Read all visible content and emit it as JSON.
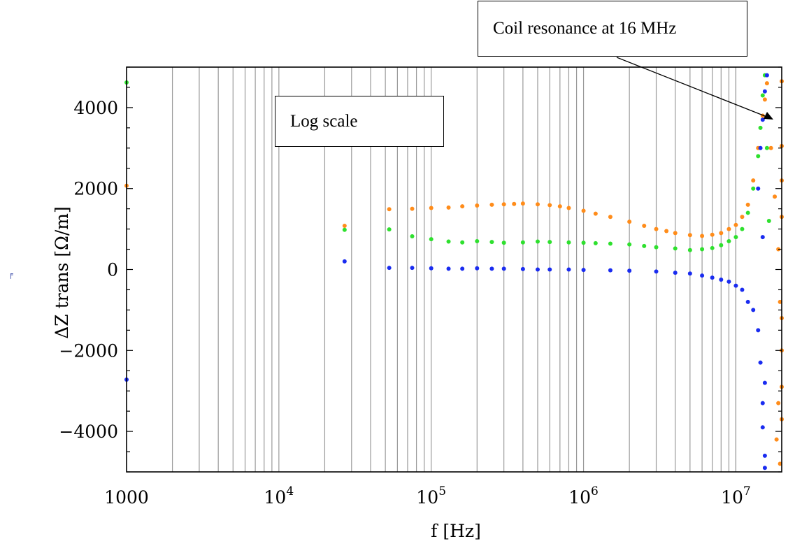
{
  "chart_data": {
    "type": "scatter",
    "xscale": "log",
    "xlim": [
      1000,
      20000000
    ],
    "ylim": [
      -5000,
      5000
    ],
    "xlabel": "f [Hz]",
    "ylabel": "ΔZ trans [Ω/m]",
    "grid": {
      "x": true,
      "y": false
    },
    "x_ticks": [
      {
        "value": 1000,
        "label": "1000"
      },
      {
        "value": 10000,
        "label": "10",
        "sup": "4"
      },
      {
        "value": 100000,
        "label": "10",
        "sup": "5"
      },
      {
        "value": 1000000,
        "label": "10",
        "sup": "6"
      },
      {
        "value": 10000000,
        "label": "10",
        "sup": "7"
      }
    ],
    "y_ticks": [
      {
        "value": 4000,
        "label": "4000"
      },
      {
        "value": 2000,
        "label": "2000"
      },
      {
        "value": 0,
        "label": "0"
      },
      {
        "value": -2000,
        "label": "−2000"
      },
      {
        "value": -4000,
        "label": "−4000"
      }
    ],
    "annotations": [
      {
        "text": "Coil resonance at 16 MHz",
        "arrow_to": {
          "x": 16000000,
          "y": 4000
        }
      },
      {
        "text": "Log scale"
      }
    ],
    "series": [
      {
        "color": "#ff8c1a",
        "points": [
          [
            1000,
            2070
          ],
          [
            27000,
            1080
          ],
          [
            53000,
            1490
          ],
          [
            75000,
            1500
          ],
          [
            100000,
            1520
          ],
          [
            130000,
            1530
          ],
          [
            160000,
            1560
          ],
          [
            200000,
            1580
          ],
          [
            250000,
            1600
          ],
          [
            300000,
            1610
          ],
          [
            350000,
            1620
          ],
          [
            400000,
            1630
          ],
          [
            500000,
            1610
          ],
          [
            600000,
            1590
          ],
          [
            700000,
            1560
          ],
          [
            800000,
            1520
          ],
          [
            1000000,
            1450
          ],
          [
            1200000,
            1380
          ],
          [
            1500000,
            1300
          ],
          [
            2000000,
            1180
          ],
          [
            2500000,
            1080
          ],
          [
            3000000,
            1000
          ],
          [
            3500000,
            950
          ],
          [
            4000000,
            900
          ],
          [
            5000000,
            850
          ],
          [
            6000000,
            830
          ],
          [
            7000000,
            860
          ],
          [
            8000000,
            900
          ],
          [
            9000000,
            1000
          ],
          [
            10000000,
            1100
          ],
          [
            11000000,
            1300
          ],
          [
            12000000,
            1600
          ],
          [
            13000000,
            2200
          ],
          [
            14000000,
            3000
          ],
          [
            15000000,
            3800
          ],
          [
            15500000,
            4200
          ],
          [
            16000000,
            4600
          ],
          [
            17000000,
            3000
          ],
          [
            18000000,
            1800
          ],
          [
            19000000,
            500
          ],
          [
            19500000,
            -800
          ],
          [
            20000000,
            -2000
          ],
          [
            19000000,
            -3300
          ],
          [
            18500000,
            -4200
          ],
          [
            19500000,
            -4800
          ],
          [
            20000000,
            4650
          ],
          [
            20000000,
            3050
          ],
          [
            20000000,
            2200
          ],
          [
            20000000,
            1300
          ],
          [
            20000000,
            -1200
          ],
          [
            20000000,
            -2900
          ],
          [
            20000000,
            -3700
          ]
        ]
      },
      {
        "color": "#2ee02e",
        "points": [
          [
            1000,
            4620
          ],
          [
            27000,
            980
          ],
          [
            53000,
            990
          ],
          [
            75000,
            820
          ],
          [
            100000,
            750
          ],
          [
            130000,
            690
          ],
          [
            160000,
            670
          ],
          [
            200000,
            700
          ],
          [
            250000,
            680
          ],
          [
            300000,
            660
          ],
          [
            400000,
            670
          ],
          [
            500000,
            690
          ],
          [
            600000,
            680
          ],
          [
            800000,
            670
          ],
          [
            1000000,
            660
          ],
          [
            1200000,
            650
          ],
          [
            1500000,
            640
          ],
          [
            2000000,
            620
          ],
          [
            2500000,
            580
          ],
          [
            3000000,
            550
          ],
          [
            4000000,
            520
          ],
          [
            5000000,
            480
          ],
          [
            6000000,
            500
          ],
          [
            7000000,
            530
          ],
          [
            8000000,
            600
          ],
          [
            9000000,
            700
          ],
          [
            10000000,
            800
          ],
          [
            11000000,
            1000
          ],
          [
            12000000,
            1400
          ],
          [
            13000000,
            2000
          ],
          [
            14000000,
            2800
          ],
          [
            14500000,
            3500
          ],
          [
            15000000,
            4300
          ],
          [
            15500000,
            4800
          ],
          [
            16000000,
            3000
          ],
          [
            16500000,
            1200
          ]
        ]
      },
      {
        "color": "#1a2cf0",
        "points": [
          [
            1000,
            -2720
          ],
          [
            27000,
            200
          ],
          [
            53000,
            40
          ],
          [
            75000,
            40
          ],
          [
            100000,
            30
          ],
          [
            130000,
            20
          ],
          [
            160000,
            20
          ],
          [
            200000,
            30
          ],
          [
            250000,
            20
          ],
          [
            300000,
            20
          ],
          [
            400000,
            10
          ],
          [
            500000,
            0
          ],
          [
            600000,
            0
          ],
          [
            800000,
            0
          ],
          [
            1000000,
            -10
          ],
          [
            1500000,
            -20
          ],
          [
            2000000,
            -30
          ],
          [
            3000000,
            -50
          ],
          [
            4000000,
            -80
          ],
          [
            5000000,
            -100
          ],
          [
            6000000,
            -150
          ],
          [
            7000000,
            -200
          ],
          [
            8000000,
            -250
          ],
          [
            9000000,
            -300
          ],
          [
            10000000,
            -400
          ],
          [
            11000000,
            -500
          ],
          [
            12000000,
            -800
          ],
          [
            13000000,
            -1000
          ],
          [
            14000000,
            -1500
          ],
          [
            14500000,
            -2300
          ],
          [
            15000000,
            -3300
          ],
          [
            15500000,
            -4600
          ],
          [
            15500000,
            -4900
          ],
          [
            14000000,
            2000
          ],
          [
            14500000,
            3000
          ],
          [
            15000000,
            3700
          ],
          [
            15500000,
            4400
          ],
          [
            16000000,
            4800
          ],
          [
            15000000,
            800
          ],
          [
            15500000,
            -2800
          ],
          [
            15000000,
            -3900
          ]
        ]
      }
    ]
  },
  "side_glyph": "╒"
}
